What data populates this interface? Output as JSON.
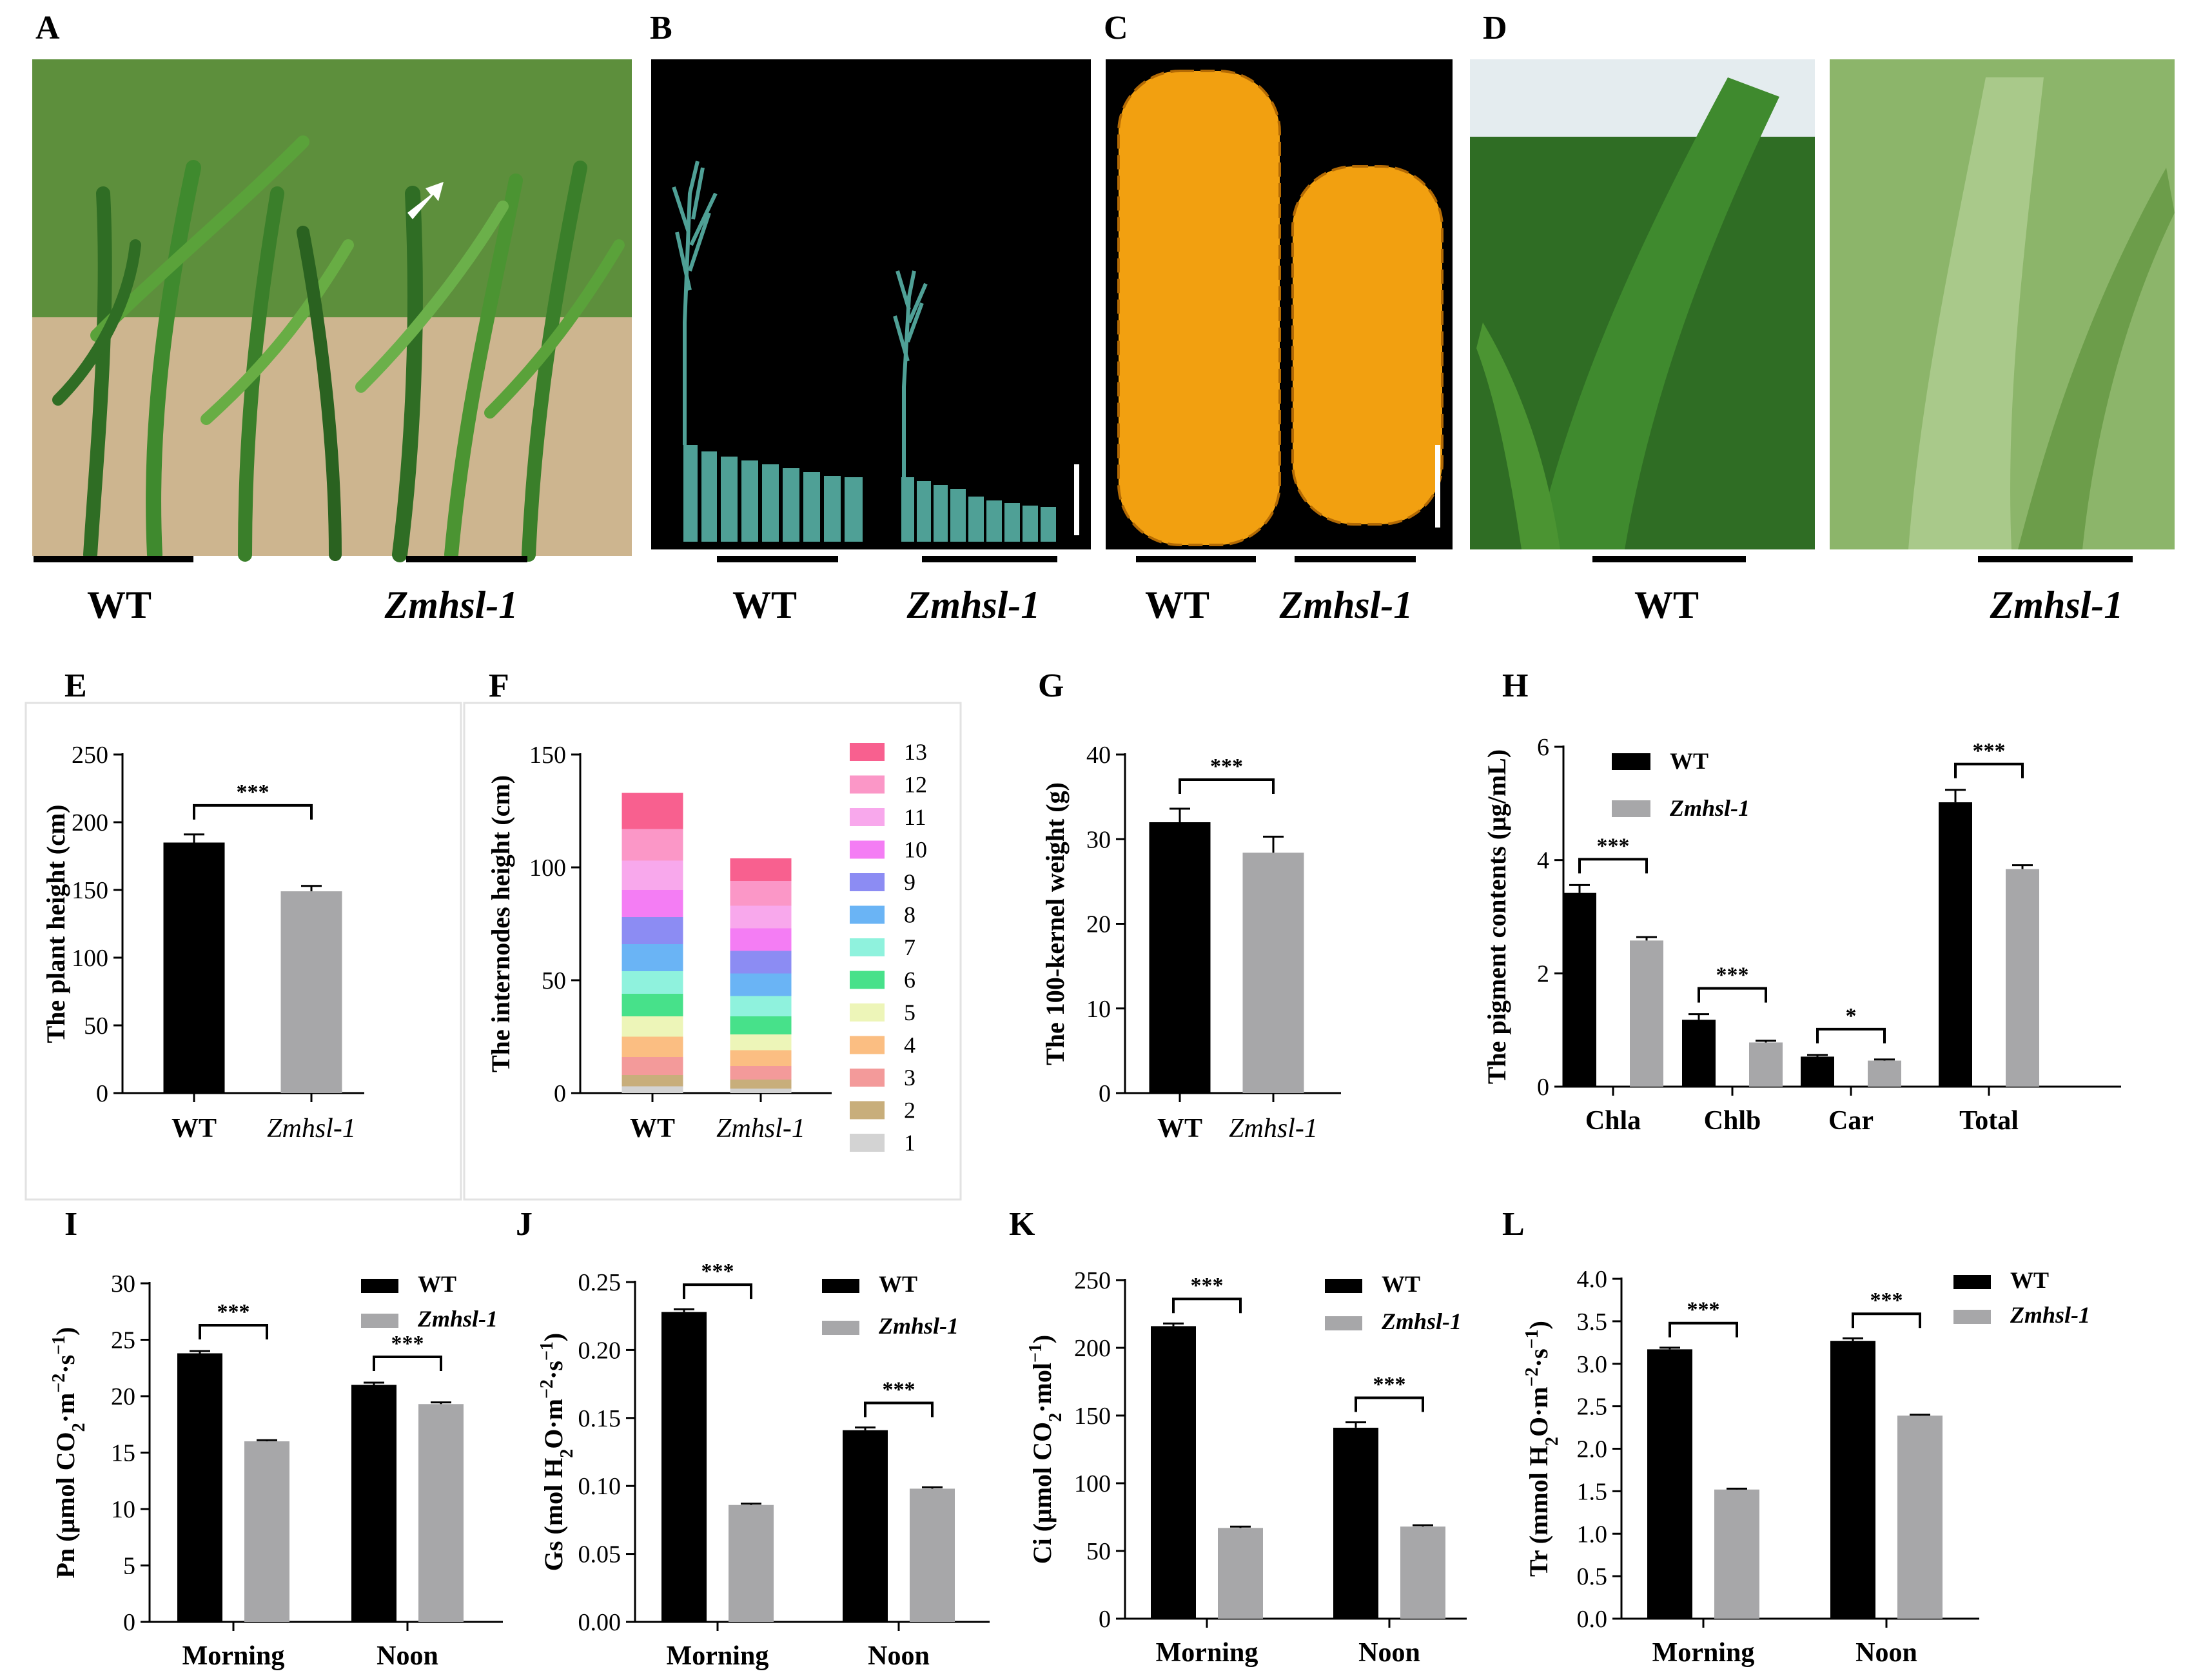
{
  "colors": {
    "wt": "#000000",
    "mutant": "#a7a7a9",
    "soil": "#cdb58f",
    "grass": "#3f7f2c",
    "photo_black": "#000000",
    "tassel": "#4fa096",
    "kernel": "#f2a010",
    "sky": "#e4ecef"
  },
  "photos": [
    {
      "letter": "A",
      "wt_label": "WT",
      "mut_label": "Zmhsl-1"
    },
    {
      "letter": "B",
      "wt_label": "WT",
      "mut_label": "Zmhsl-1"
    },
    {
      "letter": "C",
      "wt_label": "WT",
      "mut_label": "Zmhsl-1"
    },
    {
      "letter": "D",
      "wt_label": "WT",
      "mut_label": "Zmhsl-1"
    }
  ],
  "chart_data": [
    {
      "id": "E",
      "letter": "E",
      "type": "bar",
      "categories": [
        "WT",
        "Zmhsl-1"
      ],
      "values": [
        185,
        149
      ],
      "errors": [
        6,
        4
      ],
      "ylabel": "The plant height (cm)",
      "ylim": [
        0,
        250
      ],
      "ticks": [
        0,
        50,
        100,
        150,
        200,
        250
      ],
      "significance": [
        {
          "between": [
            0,
            1
          ],
          "label": "***"
        }
      ]
    },
    {
      "id": "F",
      "letter": "F",
      "type": "stacked-bar",
      "categories": [
        "WT",
        "Zmhsl-1"
      ],
      "ylabel": "The internodes height (cm)",
      "ylim": [
        0,
        150
      ],
      "ticks": [
        0,
        50,
        100,
        150
      ],
      "legend": [
        "13",
        "12",
        "11",
        "10",
        "9",
        "8",
        "7",
        "6",
        "5",
        "4",
        "3",
        "2",
        "1"
      ],
      "series": [
        {
          "name": "1",
          "color": "#d3d3d3",
          "values": [
            3,
            2
          ]
        },
        {
          "name": "2",
          "color": "#c8ae7b",
          "values": [
            5,
            4
          ]
        },
        {
          "name": "3",
          "color": "#f39a9a",
          "values": [
            8,
            6
          ]
        },
        {
          "name": "4",
          "color": "#fbbe82",
          "values": [
            9,
            7
          ]
        },
        {
          "name": "5",
          "color": "#edf5b8",
          "values": [
            9,
            7
          ]
        },
        {
          "name": "6",
          "color": "#47e18a",
          "values": [
            10,
            8
          ]
        },
        {
          "name": "7",
          "color": "#8ff2dd",
          "values": [
            10,
            9
          ]
        },
        {
          "name": "8",
          "color": "#6ab4f5",
          "values": [
            12,
            10
          ]
        },
        {
          "name": "9",
          "color": "#8c8cf3",
          "values": [
            12,
            10
          ]
        },
        {
          "name": "10",
          "color": "#f47df4",
          "values": [
            12,
            10
          ]
        },
        {
          "name": "11",
          "color": "#f8a8ec",
          "values": [
            13,
            10
          ]
        },
        {
          "name": "12",
          "color": "#fb97c7",
          "values": [
            14,
            11
          ]
        },
        {
          "name": "13",
          "color": "#f8608f",
          "values": [
            16,
            10
          ]
        }
      ]
    },
    {
      "id": "G",
      "letter": "G",
      "type": "bar",
      "categories": [
        "WT",
        "Zmhsl-1"
      ],
      "values": [
        32,
        28.4
      ],
      "errors": [
        1.6,
        1.9
      ],
      "ylabel": "The 100-kernel weight (g)",
      "ylim": [
        0,
        40
      ],
      "ticks": [
        0,
        10,
        20,
        30,
        40
      ],
      "significance": [
        {
          "between": [
            0,
            1
          ],
          "label": "***"
        }
      ]
    },
    {
      "id": "H",
      "letter": "H",
      "type": "grouped-bar",
      "categories": [
        "Chla",
        "Chlb",
        "Car",
        "Total"
      ],
      "series": [
        {
          "name": "WT",
          "values": [
            3.42,
            1.18,
            0.53,
            5.02
          ]
        },
        {
          "name": "Zmhsl-1",
          "values": [
            2.58,
            0.78,
            0.46,
            3.84
          ]
        }
      ],
      "errors": [
        [
          0.14,
          0.1,
          0.03,
          0.22
        ],
        [
          0.06,
          0.03,
          0.02,
          0.07
        ]
      ],
      "ylabel": "The pigment contents (μg/mL)",
      "ylim": [
        0,
        6
      ],
      "ticks": [
        0,
        2,
        4,
        6
      ],
      "legend": [
        "WT",
        "Zmhsl-1"
      ],
      "significance": [
        "***",
        "***",
        "*",
        "***"
      ]
    },
    {
      "id": "I",
      "letter": "I",
      "type": "grouped-bar",
      "categories": [
        "Morning",
        "Noon"
      ],
      "series": [
        {
          "name": "WT",
          "values": [
            23.8,
            21.0
          ]
        },
        {
          "name": "Zmhsl-1",
          "values": [
            16.0,
            19.3
          ]
        }
      ],
      "errors": [
        [
          0.2,
          0.2
        ],
        [
          0.1,
          0.15
        ]
      ],
      "ylabel_parts": [
        "Pn (μmol CO",
        "2",
        "·m",
        "−2",
        "·s",
        "−1",
        ")"
      ],
      "ylim": [
        0,
        30
      ],
      "ticks": [
        0,
        5,
        10,
        15,
        20,
        25,
        30
      ],
      "legend": [
        "WT",
        "Zmhsl-1"
      ],
      "significance": [
        "***",
        "***"
      ]
    },
    {
      "id": "J",
      "letter": "J",
      "type": "grouped-bar",
      "categories": [
        "Morning",
        "Noon"
      ],
      "series": [
        {
          "name": "WT",
          "values": [
            0.228,
            0.141
          ]
        },
        {
          "name": "Zmhsl-1",
          "values": [
            0.086,
            0.098
          ]
        }
      ],
      "errors": [
        [
          0.002,
          0.002
        ],
        [
          0.001,
          0.001
        ]
      ],
      "ylabel_parts": [
        "Gs (mol H",
        "2",
        "O·m",
        "−2",
        "·s",
        "−1",
        ")"
      ],
      "ylim": [
        0,
        0.25
      ],
      "ticks": [
        0,
        0.05,
        0.1,
        0.15,
        0.2,
        0.25
      ],
      "tick_labels": [
        "0.00",
        "0.05",
        "0.10",
        "0.15",
        "0.20",
        "0.25"
      ],
      "legend": [
        "WT",
        "Zmhsl-1"
      ],
      "significance": [
        "***",
        "***"
      ]
    },
    {
      "id": "K",
      "letter": "K",
      "type": "grouped-bar",
      "categories": [
        "Morning",
        "Noon"
      ],
      "series": [
        {
          "name": "WT",
          "values": [
            216,
            141
          ]
        },
        {
          "name": "Zmhsl-1",
          "values": [
            67,
            68
          ]
        }
      ],
      "errors": [
        [
          2,
          4
        ],
        [
          1,
          1
        ]
      ],
      "ylabel_parts": [
        "Ci (μmol CO",
        "2",
        "·mol",
        "−1",
        ")"
      ],
      "ylim": [
        0,
        250
      ],
      "ticks": [
        0,
        50,
        100,
        150,
        200,
        250
      ],
      "legend": [
        "WT",
        "Zmhsl-1"
      ],
      "significance": [
        "***",
        "***"
      ]
    },
    {
      "id": "L",
      "letter": "L",
      "type": "grouped-bar",
      "categories": [
        "Morning",
        "Noon"
      ],
      "series": [
        {
          "name": "WT",
          "values": [
            3.17,
            3.27
          ]
        },
        {
          "name": "Zmhsl-1",
          "values": [
            1.52,
            2.39
          ]
        }
      ],
      "errors": [
        [
          0.02,
          0.03
        ],
        [
          0.01,
          0.01
        ]
      ],
      "ylabel_parts": [
        "Tr (mmol H",
        "2",
        "O·m",
        "−2",
        "·s",
        "−1",
        ")"
      ],
      "ylim": [
        0,
        4
      ],
      "ticks": [
        0,
        0.5,
        1,
        1.5,
        2,
        2.5,
        3,
        3.5,
        4
      ],
      "tick_labels": [
        "0.0",
        "0.5",
        "1.0",
        "1.5",
        "2.0",
        "2.5",
        "3.0",
        "3.5",
        "4.0"
      ],
      "legend": [
        "WT",
        "Zmhsl-1"
      ],
      "significance": [
        "***",
        "***"
      ]
    }
  ]
}
